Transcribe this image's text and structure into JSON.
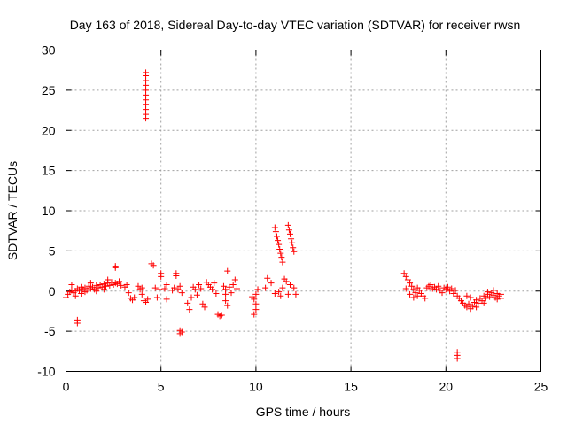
{
  "chart_data": {
    "type": "scatter",
    "title": "Day 163 of 2018, Sidereal Day-to-day VTEC variation (SDTVAR) for receiver rwsn",
    "xlabel": "GPS time / hours",
    "ylabel": "SDTVAR / TECUs",
    "xlim": [
      0,
      25
    ],
    "ylim": [
      -10,
      30
    ],
    "xticks": [
      "0",
      "5",
      "10",
      "15",
      "20",
      "25"
    ],
    "yticks": [
      "-10",
      "-5",
      "0",
      "5",
      "10",
      "15",
      "20",
      "25",
      "30"
    ],
    "grid": true,
    "marker": "+",
    "color": "#ff0000",
    "series": [
      {
        "name": "SDTVAR",
        "points": [
          [
            0.0,
            -0.8
          ],
          [
            0.1,
            -0.4
          ],
          [
            0.2,
            -0.1
          ],
          [
            0.3,
            0.1
          ],
          [
            0.4,
            -0.2
          ],
          [
            0.5,
            0.0
          ],
          [
            0.6,
            0.3
          ],
          [
            0.7,
            0.1
          ],
          [
            0.8,
            0.5
          ],
          [
            0.9,
            0.2
          ],
          [
            1.0,
            0.4
          ],
          [
            1.1,
            0.1
          ],
          [
            1.2,
            0.6
          ],
          [
            1.3,
            0.3
          ],
          [
            1.4,
            0.5
          ],
          [
            1.5,
            0.2
          ],
          [
            1.6,
            0.7
          ],
          [
            1.7,
            0.4
          ],
          [
            1.8,
            0.8
          ],
          [
            1.9,
            0.5
          ],
          [
            2.0,
            0.9
          ],
          [
            2.1,
            0.6
          ],
          [
            2.2,
            1.0
          ],
          [
            2.3,
            0.7
          ],
          [
            2.4,
            1.1
          ],
          [
            2.5,
            0.8
          ],
          [
            2.6,
            1.0
          ],
          [
            2.7,
            0.9
          ],
          [
            2.8,
            1.2
          ],
          [
            2.9,
            0.7
          ],
          [
            0.3,
            0.8
          ],
          [
            0.5,
            -0.6
          ],
          [
            0.8,
            -0.3
          ],
          [
            1.0,
            -0.1
          ],
          [
            1.3,
            1.0
          ],
          [
            1.6,
            0.0
          ],
          [
            2.0,
            0.2
          ],
          [
            2.2,
            1.4
          ],
          [
            0.6,
            -4.0
          ],
          [
            0.6,
            -3.6
          ],
          [
            2.6,
            2.9
          ],
          [
            2.6,
            3.1
          ],
          [
            3.1,
            0.5
          ],
          [
            3.2,
            0.8
          ],
          [
            3.3,
            -0.2
          ],
          [
            3.4,
            -0.9
          ],
          [
            3.5,
            -1.1
          ],
          [
            3.6,
            -0.8
          ],
          [
            3.8,
            0.6
          ],
          [
            3.9,
            0.2
          ],
          [
            4.0,
            -0.4
          ],
          [
            4.0,
            0.4
          ],
          [
            4.1,
            -1.2
          ],
          [
            4.2,
            -1.4
          ],
          [
            4.3,
            -1.0
          ],
          [
            4.2,
            21.5
          ],
          [
            4.2,
            22.0
          ],
          [
            4.2,
            22.6
          ],
          [
            4.2,
            23.2
          ],
          [
            4.2,
            23.8
          ],
          [
            4.2,
            24.4
          ],
          [
            4.2,
            25.0
          ],
          [
            4.2,
            25.6
          ],
          [
            4.2,
            26.2
          ],
          [
            4.2,
            26.8
          ],
          [
            4.2,
            27.2
          ],
          [
            4.5,
            3.4
          ],
          [
            4.6,
            3.2
          ],
          [
            4.7,
            0.4
          ],
          [
            4.8,
            -0.8
          ],
          [
            4.9,
            0.2
          ],
          [
            5.0,
            1.8
          ],
          [
            5.0,
            2.2
          ],
          [
            5.2,
            0.3
          ],
          [
            5.3,
            -1.0
          ],
          [
            5.3,
            0.8
          ],
          [
            5.6,
            0.1
          ],
          [
            5.7,
            0.4
          ],
          [
            5.8,
            1.9
          ],
          [
            5.8,
            2.2
          ],
          [
            5.9,
            0.2
          ],
          [
            6.0,
            0.6
          ],
          [
            6.1,
            -0.2
          ],
          [
            6.0,
            -5.3
          ],
          [
            6.0,
            -4.9
          ],
          [
            6.1,
            -5.1
          ],
          [
            6.4,
            -1.5
          ],
          [
            6.5,
            -2.3
          ],
          [
            6.6,
            -0.8
          ],
          [
            6.7,
            0.5
          ],
          [
            6.8,
            0.2
          ],
          [
            6.9,
            -0.5
          ],
          [
            7.0,
            0.8
          ],
          [
            7.1,
            0.3
          ],
          [
            7.2,
            -1.6
          ],
          [
            7.3,
            -2.0
          ],
          [
            7.4,
            1.1
          ],
          [
            7.5,
            0.8
          ],
          [
            7.6,
            0.5
          ],
          [
            7.7,
            0.2
          ],
          [
            7.8,
            1.0
          ],
          [
            7.9,
            -0.3
          ],
          [
            8.0,
            -2.9
          ],
          [
            8.1,
            -3.1
          ],
          [
            8.2,
            -3.0
          ],
          [
            8.3,
            0.6
          ],
          [
            8.4,
            -1.2
          ],
          [
            8.4,
            -0.4
          ],
          [
            8.4,
            0.2
          ],
          [
            8.5,
            2.5
          ],
          [
            8.5,
            -1.8
          ],
          [
            8.6,
            0.5
          ],
          [
            8.7,
            -0.2
          ],
          [
            8.8,
            0.8
          ],
          [
            8.9,
            1.4
          ],
          [
            9.0,
            0.3
          ],
          [
            9.9,
            -2.9
          ],
          [
            10.0,
            -2.3
          ],
          [
            10.0,
            -1.6
          ],
          [
            9.9,
            -1.0
          ],
          [
            10.0,
            -0.4
          ],
          [
            10.1,
            0.2
          ],
          [
            9.8,
            -0.7
          ],
          [
            10.5,
            0.4
          ],
          [
            10.6,
            1.6
          ],
          [
            10.8,
            1.0
          ],
          [
            11.0,
            7.9
          ],
          [
            11.05,
            7.4
          ],
          [
            11.1,
            6.8
          ],
          [
            11.15,
            6.3
          ],
          [
            11.2,
            5.8
          ],
          [
            11.25,
            5.2
          ],
          [
            11.3,
            4.7
          ],
          [
            11.35,
            4.2
          ],
          [
            11.4,
            3.6
          ],
          [
            11.7,
            8.2
          ],
          [
            11.75,
            7.6
          ],
          [
            11.8,
            7.1
          ],
          [
            11.85,
            6.5
          ],
          [
            11.9,
            6.0
          ],
          [
            11.95,
            5.4
          ],
          [
            12.0,
            4.9
          ],
          [
            11.0,
            -0.3
          ],
          [
            11.2,
            -0.1
          ],
          [
            11.4,
            0.4
          ],
          [
            11.5,
            1.5
          ],
          [
            11.6,
            1.2
          ],
          [
            11.8,
            0.8
          ],
          [
            12.0,
            0.4
          ],
          [
            12.1,
            -0.4
          ],
          [
            11.3,
            -0.6
          ],
          [
            11.7,
            -0.4
          ],
          [
            17.8,
            2.2
          ],
          [
            17.9,
            1.8
          ],
          [
            18.0,
            1.4
          ],
          [
            18.1,
            1.0
          ],
          [
            18.2,
            0.6
          ],
          [
            18.3,
            0.2
          ],
          [
            18.4,
            -0.2
          ],
          [
            18.5,
            -0.6
          ],
          [
            17.9,
            0.3
          ],
          [
            18.1,
            -0.4
          ],
          [
            18.3,
            -0.8
          ],
          [
            18.5,
            0.4
          ],
          [
            18.6,
            0.1
          ],
          [
            18.7,
            -0.3
          ],
          [
            18.8,
            -0.6
          ],
          [
            18.9,
            -0.9
          ],
          [
            19.0,
            0.4
          ],
          [
            19.1,
            0.6
          ],
          [
            19.2,
            0.8
          ],
          [
            19.3,
            0.3
          ],
          [
            19.4,
            0.5
          ],
          [
            19.5,
            0.2
          ],
          [
            19.6,
            0.6
          ],
          [
            19.7,
            0.1
          ],
          [
            19.8,
            -0.2
          ],
          [
            19.9,
            0.4
          ],
          [
            20.0,
            0.2
          ],
          [
            20.1,
            0.5
          ],
          [
            20.2,
            0.0
          ],
          [
            20.3,
            0.3
          ],
          [
            20.4,
            -0.3
          ],
          [
            20.5,
            0.1
          ],
          [
            20.6,
            -0.6
          ],
          [
            20.7,
            -0.9
          ],
          [
            20.8,
            -1.2
          ],
          [
            20.9,
            -1.5
          ],
          [
            21.0,
            -1.8
          ],
          [
            21.1,
            -2.0
          ],
          [
            21.2,
            -1.6
          ],
          [
            21.3,
            -2.2
          ],
          [
            21.4,
            -1.9
          ],
          [
            21.5,
            -1.4
          ],
          [
            21.6,
            -1.1
          ],
          [
            21.7,
            -1.5
          ],
          [
            21.8,
            -0.9
          ],
          [
            21.9,
            -1.2
          ],
          [
            22.0,
            -0.6
          ],
          [
            22.1,
            -0.9
          ],
          [
            22.2,
            -0.4
          ],
          [
            22.3,
            -0.7
          ],
          [
            22.4,
            -0.2
          ],
          [
            22.5,
            -0.5
          ],
          [
            22.6,
            -0.8
          ],
          [
            22.7,
            -0.3
          ],
          [
            22.8,
            -0.6
          ],
          [
            22.9,
            -0.4
          ],
          [
            20.6,
            -8.4
          ],
          [
            20.6,
            -8.0
          ],
          [
            20.6,
            -7.6
          ],
          [
            21.1,
            -0.6
          ],
          [
            21.3,
            -0.8
          ],
          [
            21.6,
            -2.0
          ],
          [
            22.0,
            -1.5
          ],
          [
            22.2,
            -0.1
          ],
          [
            22.5,
            0.1
          ],
          [
            22.7,
            -1.0
          ],
          [
            22.9,
            -0.9
          ]
        ]
      }
    ]
  }
}
